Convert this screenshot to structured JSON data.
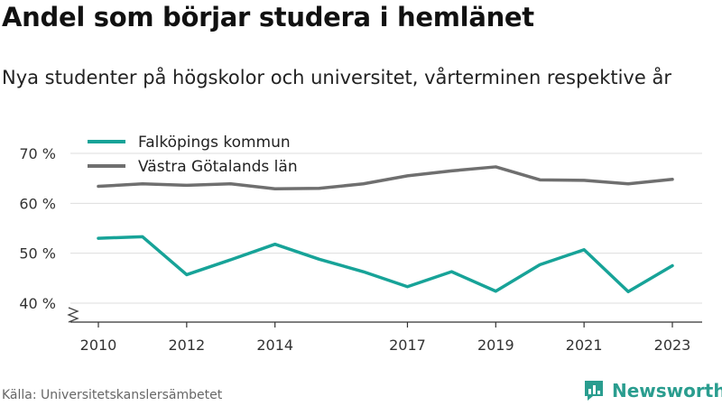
{
  "header": {
    "title": "Andel som börjar studera i hemlänet",
    "subtitle": "Nya studenter på högskolor och universitet, vårterminen respektive år"
  },
  "footer": {
    "source": "Källa: Universitetskanslersämbetet",
    "brand": "Newsworthy",
    "brand_icon": "newsworthy-logo-icon"
  },
  "chart_data": {
    "type": "line",
    "x": [
      2010,
      2011,
      2012,
      2013,
      2014,
      2015,
      2016,
      2017,
      2018,
      2019,
      2020,
      2021,
      2022,
      2023
    ],
    "x_ticks": [
      2010,
      2012,
      2014,
      2017,
      2019,
      2021,
      2023
    ],
    "x_tick_labels": [
      "2010",
      "2012",
      "2014",
      "2017",
      "2019",
      "2021",
      "2023"
    ],
    "y_ticks": [
      40,
      50,
      60,
      70
    ],
    "y_tick_labels": [
      "40 %",
      "50 %",
      "60 %",
      "70 %"
    ],
    "ylim": [
      36,
      72
    ],
    "grid": true,
    "axis_break": true,
    "legend_position": "top-left",
    "series": [
      {
        "name": "Falköpings kommun",
        "color": "#17a398",
        "values": [
          53.0,
          53.3,
          45.7,
          48.7,
          51.8,
          48.8,
          46.3,
          43.3,
          46.3,
          42.4,
          47.7,
          50.7,
          42.3,
          47.5
        ]
      },
      {
        "name": "Västra Götalands län",
        "color": "#6f6f6f",
        "values": [
          63.4,
          63.9,
          63.6,
          63.9,
          62.9,
          63.0,
          63.9,
          65.5,
          66.5,
          67.3,
          64.7,
          64.6,
          63.9,
          64.8
        ]
      }
    ]
  }
}
